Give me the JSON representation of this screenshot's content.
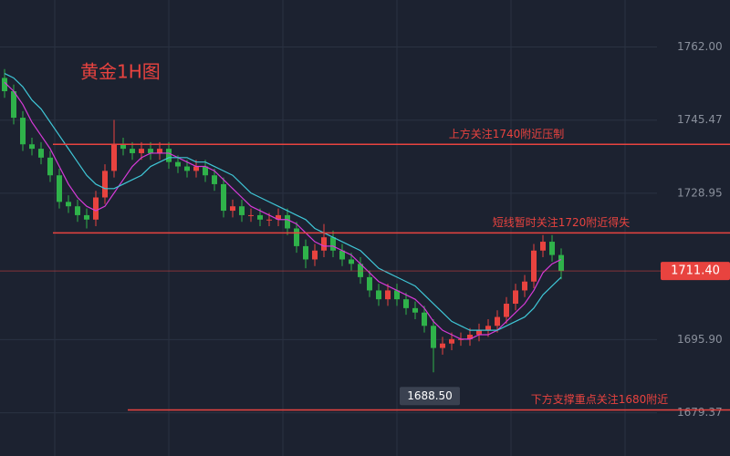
{
  "chart_data": {
    "type": "candlestick",
    "title": "黄金1H图",
    "ylim": [
      1669.6,
      1772.6
    ],
    "yticks": [
      {
        "value": 1679.37,
        "label": "1679.37"
      },
      {
        "value": 1695.9,
        "label": "1695.90"
      },
      {
        "value": 1728.95,
        "label": "1728.95"
      },
      {
        "value": 1745.47,
        "label": "1745.47"
      },
      {
        "value": 1762,
        "label": "1762.00"
      }
    ],
    "up_color": "#e8433f",
    "down_color": "#2fb24a",
    "candles": {
      "open": [
        1755,
        1752,
        1746,
        1740,
        1739,
        1737,
        1733,
        1727,
        1726,
        1724,
        1723,
        1728,
        1734,
        1740,
        1739,
        1738,
        1739,
        1738,
        1739,
        1736,
        1735,
        1734,
        1735,
        1733,
        1731,
        1725,
        1726,
        1724,
        1724,
        1723,
        1723,
        1724,
        1721,
        1717,
        1714,
        1716,
        1719,
        1716,
        1714,
        1713,
        1710,
        1707,
        1705,
        1707,
        1705,
        1703,
        1702,
        1699,
        1694,
        1695,
        1696,
        1696,
        1697,
        1698,
        1699,
        1701,
        1704,
        1707,
        1709,
        1716,
        1718,
        1715
      ],
      "high": [
        1757,
        1753.5,
        1747.5,
        1741.5,
        1740.5,
        1738.5,
        1734.5,
        1728.5,
        1727.5,
        1725.5,
        1729.5,
        1735.5,
        1745.5,
        1741.5,
        1740.5,
        1740.5,
        1740.5,
        1740.5,
        1740.5,
        1737.5,
        1736.5,
        1736.5,
        1736.5,
        1734.5,
        1732.5,
        1727.5,
        1727.5,
        1725.5,
        1725.5,
        1724.5,
        1725.5,
        1725.5,
        1722.5,
        1718.5,
        1717.5,
        1722,
        1720.5,
        1717.5,
        1715.5,
        1714.5,
        1711.5,
        1708.5,
        1708.5,
        1708.5,
        1706.5,
        1704.5,
        1703.5,
        1700.5,
        1696.5,
        1697.5,
        1697.5,
        1698.5,
        1699.5,
        1700.5,
        1702.5,
        1705.5,
        1708.5,
        1710.5,
        1717.5,
        1719.5,
        1719.5,
        1716.5
      ],
      "low": [
        1750.5,
        1744.5,
        1738.5,
        1737.5,
        1735.5,
        1731.5,
        1725.5,
        1724.5,
        1722.5,
        1721,
        1721.5,
        1726.5,
        1732.5,
        1737.5,
        1736.5,
        1736.5,
        1736.5,
        1736.5,
        1734.5,
        1733.5,
        1732.5,
        1732.5,
        1731.5,
        1729.5,
        1723.5,
        1723.5,
        1722.5,
        1722.5,
        1721.5,
        1721.5,
        1721.5,
        1719.5,
        1715.5,
        1712,
        1712.5,
        1714.5,
        1714.5,
        1712.5,
        1711.5,
        1708.5,
        1705.5,
        1703.5,
        1703.5,
        1703.5,
        1701.5,
        1700.5,
        1697.5,
        1688.5,
        1692.5,
        1693.5,
        1694.5,
        1694.5,
        1695.5,
        1696.5,
        1697.5,
        1699.5,
        1702.5,
        1705.5,
        1707.5,
        1714.5,
        1713.5,
        1709.5
      ],
      "close": [
        1752,
        1746,
        1740,
        1739,
        1737,
        1733,
        1727,
        1726,
        1724,
        1723,
        1728,
        1734,
        1740,
        1739,
        1738,
        1739,
        1738,
        1739,
        1736,
        1735,
        1734,
        1735,
        1733,
        1731,
        1725,
        1726,
        1724,
        1724,
        1723,
        1723,
        1724,
        1721,
        1717,
        1714,
        1716,
        1719,
        1716,
        1714,
        1713,
        1710,
        1707,
        1705,
        1707,
        1705,
        1703,
        1702,
        1699,
        1694,
        1695,
        1696,
        1696,
        1697,
        1698,
        1699,
        1701,
        1704,
        1707,
        1709,
        1716,
        1718,
        1715,
        1711.4
      ]
    },
    "ma": [
      {
        "color": "#d63ad8",
        "values": [
          1754,
          1752,
          1749,
          1745,
          1742,
          1739,
          1735,
          1731,
          1728,
          1726,
          1725,
          1726,
          1729,
          1732,
          1735,
          1737,
          1738,
          1738,
          1738,
          1737,
          1736,
          1735,
          1735,
          1734,
          1732,
          1730,
          1728,
          1726,
          1725,
          1724,
          1723,
          1723,
          1722,
          1720,
          1718,
          1717,
          1717,
          1716,
          1715,
          1713,
          1711,
          1709,
          1708,
          1707,
          1706,
          1705,
          1703,
          1700,
          1698,
          1697,
          1696,
          1696,
          1697,
          1697,
          1698,
          1700,
          1702,
          1704,
          1707,
          1711,
          1713,
          1714
        ]
      },
      {
        "color": "#3fc6d6",
        "values": [
          1756,
          1755,
          1753,
          1750,
          1748,
          1745,
          1742,
          1739,
          1736,
          1733,
          1731,
          1730,
          1730,
          1731,
          1732,
          1733,
          1735,
          1736,
          1737,
          1737,
          1737,
          1736,
          1736,
          1735,
          1734,
          1733,
          1731,
          1729,
          1728,
          1727,
          1726,
          1725,
          1724,
          1723,
          1721,
          1720,
          1719,
          1718,
          1717,
          1716,
          1714,
          1712,
          1711,
          1710,
          1709,
          1708,
          1706,
          1704,
          1702,
          1700,
          1699,
          1698,
          1698,
          1698,
          1698,
          1699,
          1700,
          1701,
          1703,
          1706,
          1708,
          1710
        ]
      }
    ],
    "levels": [
      {
        "value": 1740,
        "label": "上方关注1740附近压制"
      },
      {
        "value": 1720,
        "label": "短线暂时关注1720附近得失"
      },
      {
        "value": 1680,
        "label": "下方支撑重点关注1680附近"
      }
    ],
    "current_price": {
      "value": 1711.4,
      "label": "1711.40"
    },
    "low_marker": {
      "value": 1688.5,
      "label": "1688.50"
    }
  }
}
